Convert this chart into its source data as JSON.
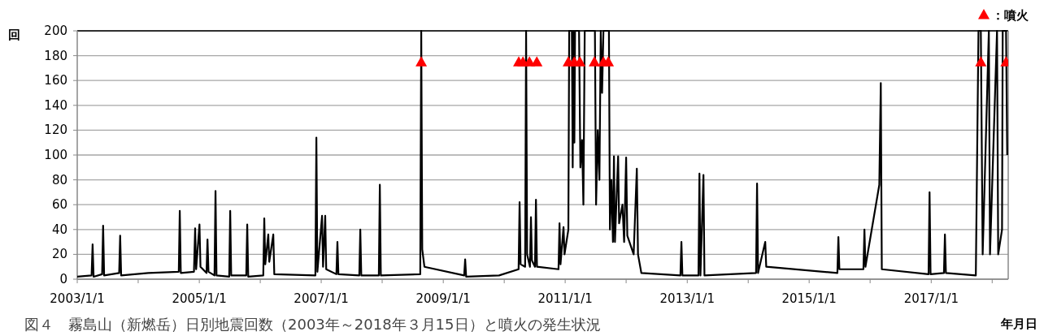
{
  "chart_data": {
    "type": "line",
    "ylabel": "回",
    "xlabel": "年月日",
    "annotations": [
      "図４　霧島山（新燃岳）日別地震回数（2003年～2018年３月15日）と噴火の発生状況"
    ],
    "xlim": [
      "2003-01-01",
      "2018-04-07"
    ],
    "xticks": [
      {
        "value": "2003-01-01",
        "label": "2003/1/1"
      },
      {
        "value": "2004-01-01",
        "label": null
      },
      {
        "value": "2005-01-01",
        "label": "2005/1/1"
      },
      {
        "value": "2006-01-01",
        "label": null
      },
      {
        "value": "2007-01-01",
        "label": "2007/1/1"
      },
      {
        "value": "2008-01-01",
        "label": null
      },
      {
        "value": "2009-01-01",
        "label": "2009/1/1"
      },
      {
        "value": "2010-01-01",
        "label": null
      },
      {
        "value": "2011-01-01",
        "label": "2011/1/1"
      },
      {
        "value": "2012-01-01",
        "label": null
      },
      {
        "value": "2013-01-01",
        "label": "2013/1/1"
      },
      {
        "value": "2014-01-01",
        "label": null
      },
      {
        "value": "2015-01-01",
        "label": "2015/1/1"
      },
      {
        "value": "2016-01-01",
        "label": null
      },
      {
        "value": "2017-01-01",
        "label": "2017/1/1"
      },
      {
        "value": "2018-01-01",
        "label": null
      }
    ],
    "ylim": [
      0,
      200
    ],
    "yticks": [
      0,
      20,
      40,
      60,
      80,
      100,
      120,
      140,
      160,
      180,
      200
    ],
    "grid": "y",
    "legend": "top right",
    "series": [
      {
        "color": "#000000",
        "marker": "none",
        "x": [
          "2003-01-01",
          "2003-03-28",
          "2003-04-03",
          "2003-04-09",
          "2003-05-30",
          "2003-06-05",
          "2003-06-11",
          "2003-09-09",
          "2003-09-15",
          "2003-09-21",
          "2004-03-01",
          "2004-08-31",
          "2004-09-06",
          "2004-09-12",
          "2004-11-30",
          "2004-12-07",
          "2004-12-13",
          "2005-01-02",
          "2005-01-08",
          "2005-02-13",
          "2005-02-19",
          "2005-02-25",
          "2005-04-02",
          "2005-04-08",
          "2005-04-14",
          "2005-06-29",
          "2005-07-05",
          "2005-07-11",
          "2005-10-09",
          "2005-10-15",
          "2005-10-21",
          "2006-01-19",
          "2006-01-25",
          "2006-01-31",
          "2006-02-18",
          "2006-02-24",
          "2006-03-20",
          "2006-03-26",
          "2006-11-27",
          "2006-12-03",
          "2006-12-09",
          "2007-01-06",
          "2007-01-12",
          "2007-01-25",
          "2007-01-31",
          "2007-04-02",
          "2007-04-08",
          "2007-04-14",
          "2007-08-17",
          "2007-08-23",
          "2007-08-29",
          "2007-12-12",
          "2007-12-18",
          "2007-12-24",
          "2008-08-16",
          "2008-08-22",
          "2008-08-28",
          "2008-09-10",
          "2009-05-06",
          "2009-05-12",
          "2009-05-18",
          "2009-12-01",
          "2010-03-28",
          "2010-04-03",
          "2010-04-09",
          "2010-05-06",
          "2010-05-12",
          "2010-05-18",
          "2010-06-04",
          "2010-06-10",
          "2010-06-16",
          "2010-07-04",
          "2010-07-10",
          "2010-07-16",
          "2010-11-22",
          "2010-11-28",
          "2010-12-04",
          "2010-12-22",
          "2010-12-28",
          "2011-01-20",
          "2011-01-25",
          "2011-02-10",
          "2011-02-15",
          "2011-02-20",
          "2011-02-25",
          "2011-03-01",
          "2011-03-25",
          "2011-04-02",
          "2011-04-12",
          "2011-04-20",
          "2011-04-28",
          "2011-06-28",
          "2011-07-05",
          "2011-07-15",
          "2011-07-25",
          "2011-08-02",
          "2011-08-10",
          "2011-08-18",
          "2011-09-20",
          "2011-09-26",
          "2011-10-05",
          "2011-10-14",
          "2011-10-20",
          "2011-10-26",
          "2011-11-14",
          "2011-11-20",
          "2011-12-10",
          "2011-12-20",
          "2012-01-01",
          "2012-01-08",
          "2012-02-15",
          "2012-03-05",
          "2012-03-12",
          "2012-04-01",
          "2012-11-21",
          "2012-11-27",
          "2012-12-03",
          "2013-03-09",
          "2013-03-15",
          "2013-03-21",
          "2013-04-08",
          "2013-04-14",
          "2014-02-17",
          "2014-02-23",
          "2014-03-01",
          "2014-04-13",
          "2014-04-19",
          "2015-06-19",
          "2015-06-25",
          "2015-07-01",
          "2015-11-22",
          "2015-11-28",
          "2015-12-04",
          "2016-02-25",
          "2016-03-05",
          "2016-03-11",
          "2016-12-16",
          "2016-12-22",
          "2016-12-28",
          "2017-03-18",
          "2017-03-24",
          "2017-03-30",
          "2017-09-25",
          "2017-10-11",
          "2017-10-25",
          "2017-11-05",
          "2017-12-12",
          "2017-12-19",
          "2018-01-30",
          "2018-02-06",
          "2018-03-01",
          "2018-03-05",
          "2018-03-25",
          "2018-04-01"
        ],
        "values": [
          2,
          3,
          28,
          2,
          4,
          43,
          3,
          5,
          35,
          3,
          5,
          6,
          55,
          5,
          6,
          41,
          8,
          44,
          10,
          5,
          32,
          6,
          3,
          71,
          3,
          2,
          55,
          3,
          3,
          44,
          2,
          3,
          49,
          12,
          36,
          14,
          36,
          4,
          3,
          114,
          6,
          51,
          10,
          51,
          8,
          4,
          30,
          4,
          3,
          40,
          3,
          3,
          76,
          3,
          4,
          200,
          24,
          10,
          3,
          16,
          2,
          3,
          8,
          62,
          12,
          10,
          200,
          20,
          10,
          50,
          15,
          10,
          64,
          10,
          8,
          45,
          12,
          42,
          20,
          40,
          200,
          200,
          90,
          200,
          110,
          200,
          200,
          90,
          112,
          60,
          200,
          200,
          60,
          120,
          80,
          200,
          150,
          200,
          200,
          40,
          80,
          30,
          99,
          30,
          99,
          45,
          60,
          30,
          98,
          35,
          20,
          89,
          20,
          5,
          3,
          30,
          3,
          3,
          85,
          3,
          84,
          3,
          5,
          77,
          5,
          30,
          10,
          5,
          34,
          8,
          8,
          40,
          10,
          76,
          158,
          8,
          4,
          70,
          4,
          5,
          36,
          5,
          3,
          200,
          200,
          20,
          200,
          20,
          200,
          20,
          40,
          200,
          200,
          100
        ]
      },
      {
        "type": "scatter",
        "name": "：噴火",
        "color": "#ff0000",
        "marker": "triangle",
        "x": [
          "2008-08-22",
          "2010-03-29",
          "2010-04-23",
          "2010-06-01",
          "2010-07-15",
          "2011-01-20",
          "2011-02-24",
          "2011-03-30",
          "2011-06-25",
          "2011-08-18",
          "2011-09-16",
          "2017-10-25",
          "2018-03-25"
        ],
        "values": [
          175,
          175,
          175,
          175,
          175,
          175,
          175,
          175,
          175,
          175,
          175,
          175,
          175
        ]
      }
    ]
  }
}
